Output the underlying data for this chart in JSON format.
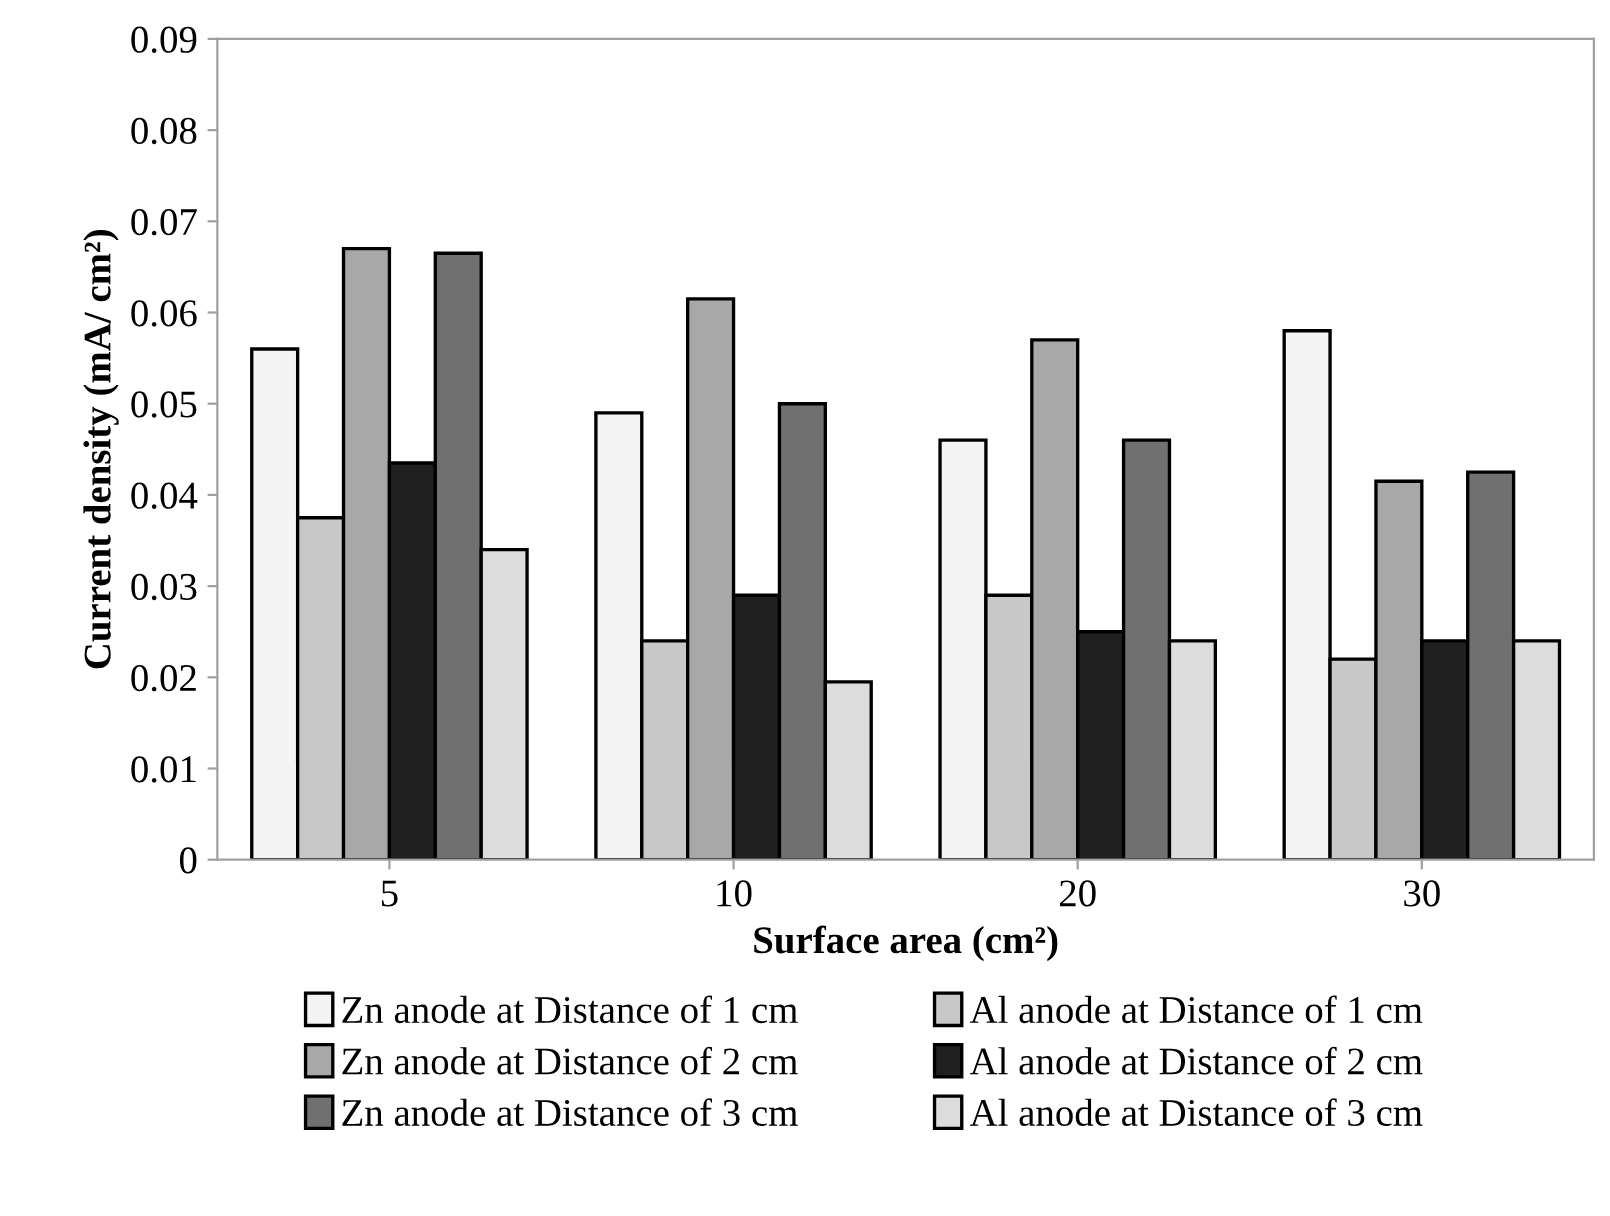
{
  "chart_data": {
    "type": "bar",
    "xlabel": "Surface area (cm²)",
    "ylabel": "Current density (mA/ cm²)",
    "categories": [
      "5",
      "10",
      "20",
      "30"
    ],
    "series": [
      {
        "name": "Zn anode at Distance of 1 cm",
        "color": "#f4f4f4",
        "values": [
          0.056,
          0.049,
          0.046,
          0.058
        ]
      },
      {
        "name": "Al anode at Distance of 1 cm",
        "color": "#c8c8c8",
        "values": [
          0.0375,
          0.024,
          0.029,
          0.022
        ]
      },
      {
        "name": "Zn anode at Distance of 2 cm",
        "color": "#a8a8a8",
        "values": [
          0.067,
          0.0615,
          0.057,
          0.0415
        ]
      },
      {
        "name": "Al anode at Distance of 2 cm",
        "color": "#202020",
        "values": [
          0.0435,
          0.029,
          0.025,
          0.024
        ]
      },
      {
        "name": "Zn anode at Distance of 3 cm",
        "color": "#707070",
        "values": [
          0.0665,
          0.05,
          0.046,
          0.0425
        ]
      },
      {
        "name": "Al anode at Distance of 3 cm",
        "color": "#dcdcdc",
        "values": [
          0.034,
          0.0195,
          0.024,
          0.024
        ]
      }
    ],
    "ylim": [
      0,
      0.09
    ],
    "yticks": [
      0,
      0.01,
      0.02,
      0.03,
      0.04,
      0.05,
      0.06,
      0.07,
      0.08,
      0.09
    ],
    "grid": false,
    "legend": "bottom"
  }
}
